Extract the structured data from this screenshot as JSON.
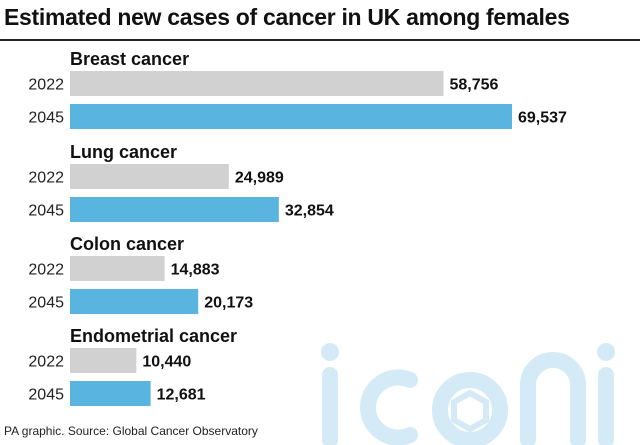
{
  "title": "Estimated new cases of cancer in UK among females",
  "source": "PA graphic. Source: Global Cancer Observatory",
  "watermark": "iconic",
  "colors": {
    "series_2022": "#d1d1d1",
    "series_2045": "#5ab4e0",
    "text": "#111111"
  },
  "chart_data": {
    "type": "bar",
    "orientation": "horizontal",
    "title": "Estimated new cases of cancer in UK among females",
    "xlabel": "",
    "ylabel": "",
    "xlim": [
      0,
      69537
    ],
    "grid": false,
    "groups": [
      {
        "name": "Breast cancer",
        "bars": [
          {
            "label": "2022",
            "value": 58756,
            "display": "58,756"
          },
          {
            "label": "2045",
            "value": 69537,
            "display": "69,537"
          }
        ]
      },
      {
        "name": "Lung cancer",
        "bars": [
          {
            "label": "2022",
            "value": 24989,
            "display": "24,989"
          },
          {
            "label": "2045",
            "value": 32854,
            "display": "32,854"
          }
        ]
      },
      {
        "name": "Colon cancer",
        "bars": [
          {
            "label": "2022",
            "value": 14883,
            "display": "14,883"
          },
          {
            "label": "2045",
            "value": 20173,
            "display": "20,173"
          }
        ]
      },
      {
        "name": "Endometrial cancer",
        "bars": [
          {
            "label": "2022",
            "value": 10440,
            "display": "10,440"
          },
          {
            "label": "2045",
            "value": 12681,
            "display": "12,681"
          }
        ]
      }
    ]
  }
}
